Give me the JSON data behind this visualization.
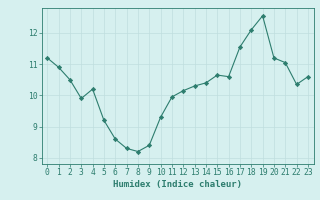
{
  "x": [
    0,
    1,
    2,
    3,
    4,
    5,
    6,
    7,
    8,
    9,
    10,
    11,
    12,
    13,
    14,
    15,
    16,
    17,
    18,
    19,
    20,
    21,
    22,
    23
  ],
  "y": [
    11.2,
    10.9,
    10.5,
    9.9,
    10.2,
    9.2,
    8.6,
    8.3,
    8.2,
    8.4,
    9.3,
    9.95,
    10.15,
    10.3,
    10.4,
    10.65,
    10.6,
    11.55,
    12.1,
    12.55,
    11.2,
    11.05,
    10.35,
    10.6
  ],
  "line_color": "#2d7d6e",
  "marker": "D",
  "marker_size": 2.2,
  "bg_color": "#d6f0ef",
  "grid_color": "#c0dede",
  "xlabel": "Humidex (Indice chaleur)",
  "xlim": [
    -0.5,
    23.5
  ],
  "ylim": [
    7.8,
    12.8
  ],
  "yticks": [
    8,
    9,
    10,
    11,
    12
  ],
  "xticks": [
    0,
    1,
    2,
    3,
    4,
    5,
    6,
    7,
    8,
    9,
    10,
    11,
    12,
    13,
    14,
    15,
    16,
    17,
    18,
    19,
    20,
    21,
    22,
    23
  ],
  "tick_color": "#2d7d6e",
  "label_fontsize": 6.5,
  "tick_fontsize": 5.8
}
